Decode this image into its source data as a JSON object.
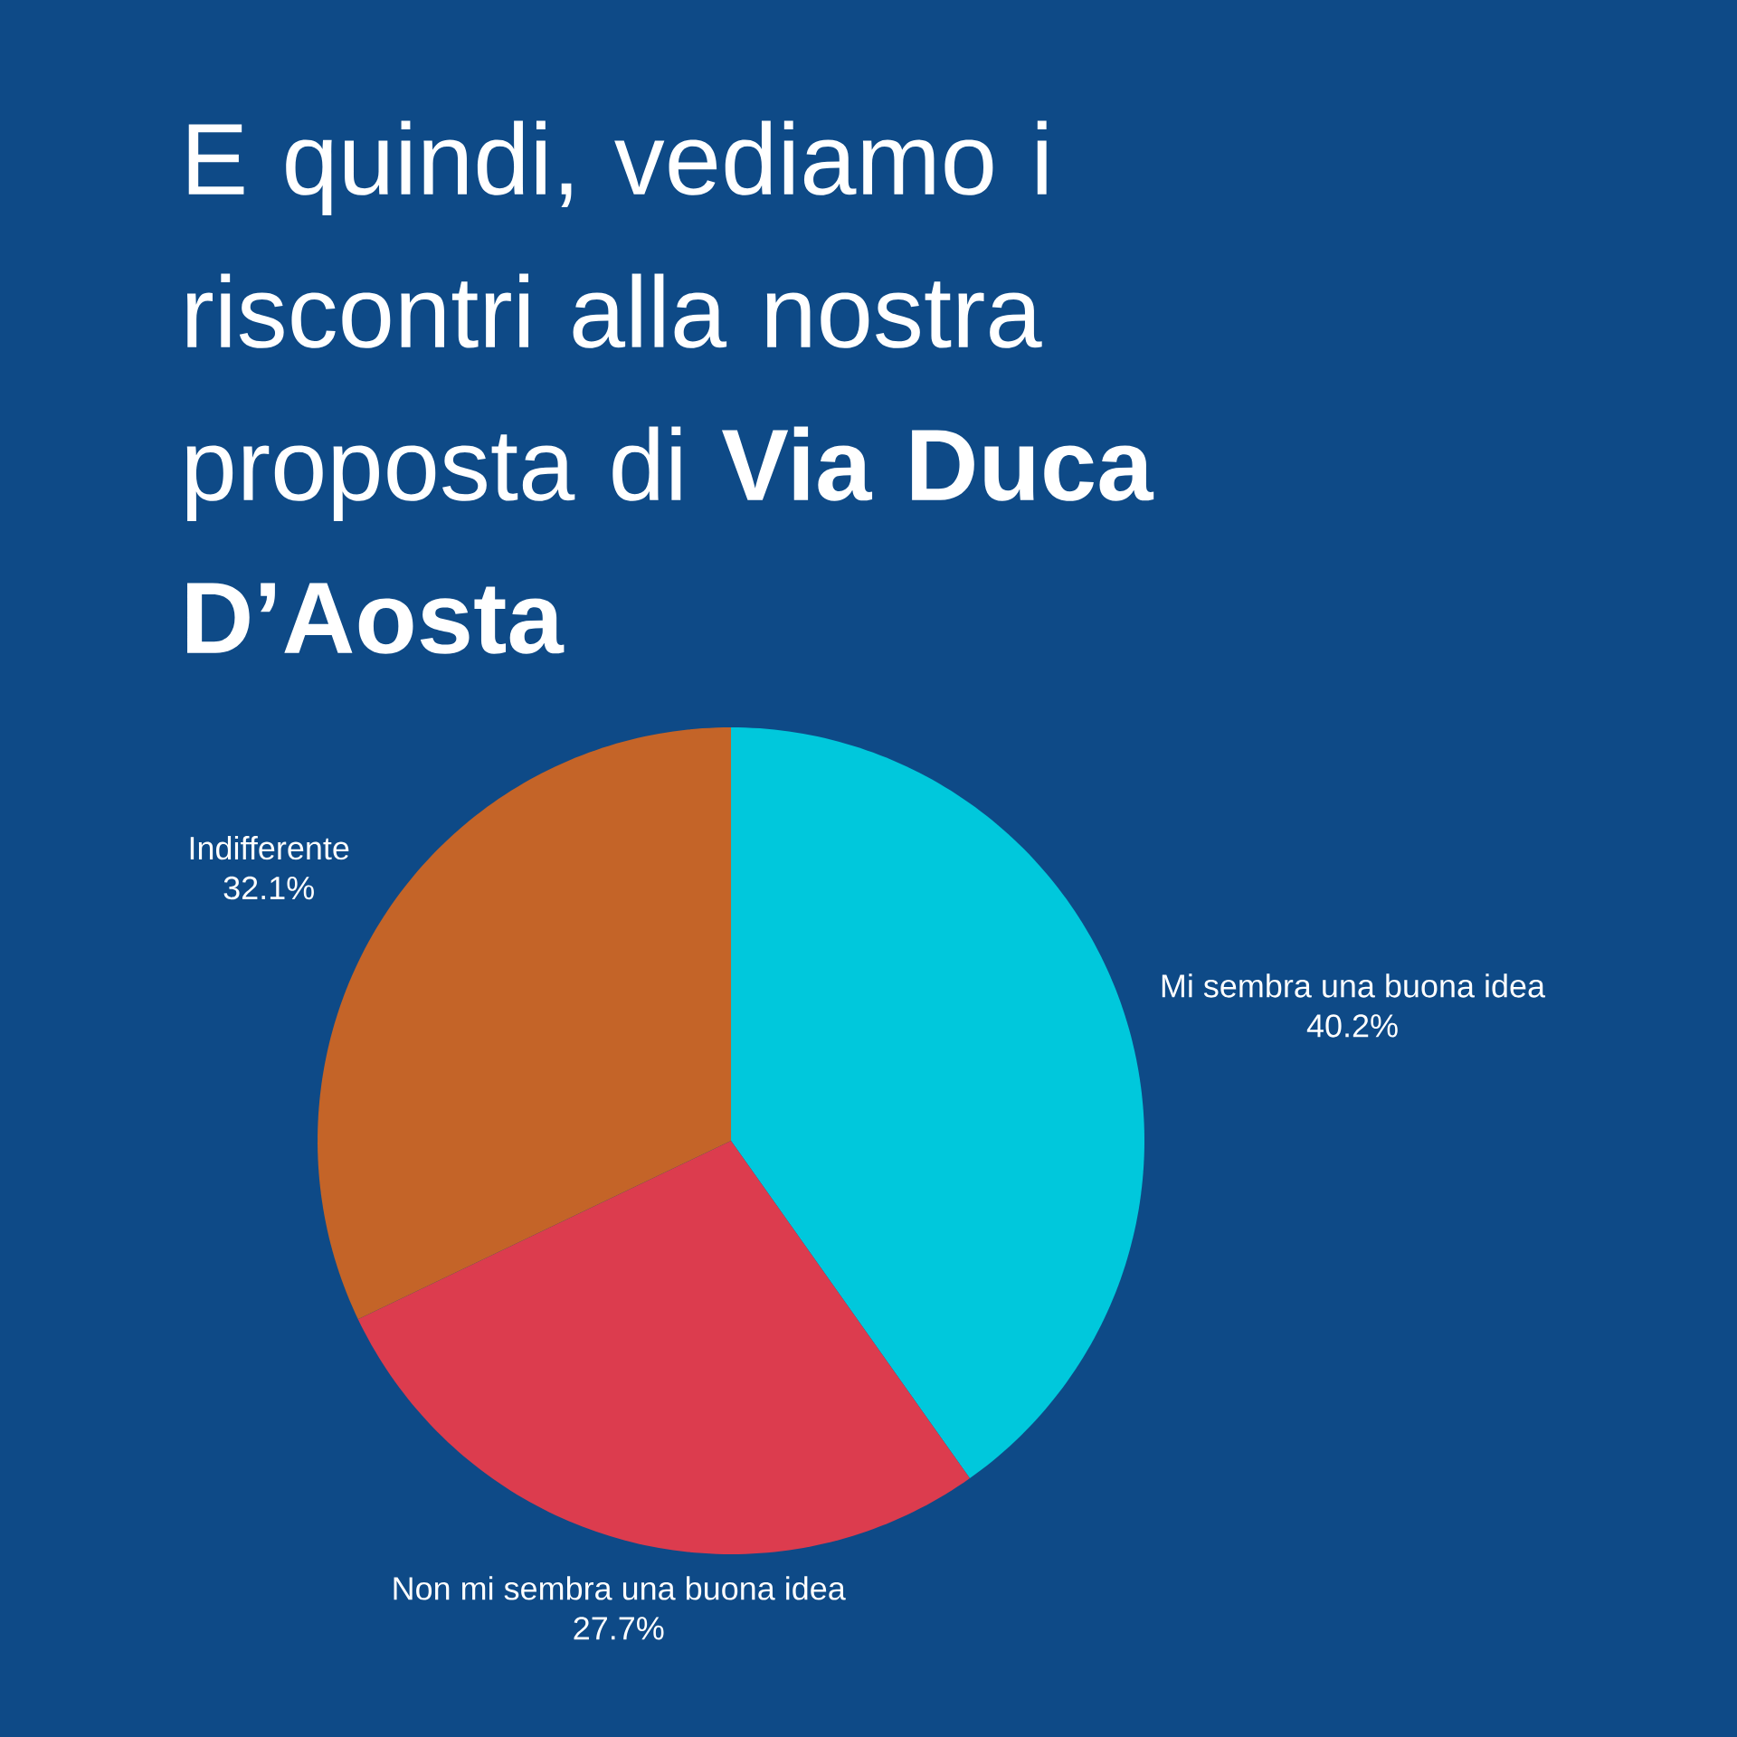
{
  "chart_data": {
    "type": "pie",
    "title": "E quindi, vediamo i riscontri alla nostra proposta di **Via Duca D’Aosta**",
    "categories": [
      "Mi sembra una buona idea",
      "Non mi sembra una buona idea",
      "Indifferente"
    ],
    "values": [
      40.2,
      27.7,
      32.1
    ],
    "value_labels": [
      "40.2%",
      "27.7%",
      "32.1%"
    ],
    "colors": [
      "#00c8dc",
      "#dc3c4e",
      "#c46428"
    ]
  }
}
